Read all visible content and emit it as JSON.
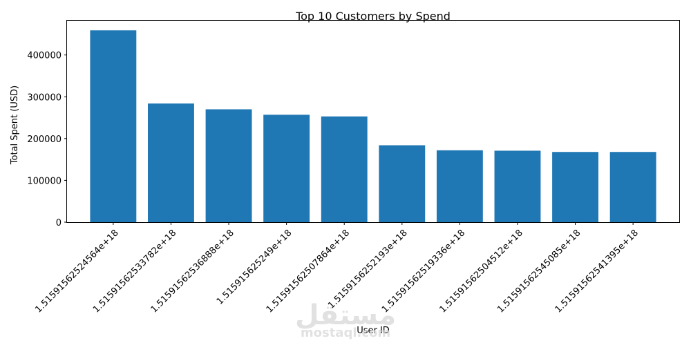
{
  "chart_data": {
    "type": "bar",
    "title": "Top 10 Customers by Spend",
    "xlabel": "User ID",
    "ylabel": "Total Spent (USD)",
    "categories": [
      "1.5159156252456​4e+18",
      "1.51591562533782e+18",
      "1.51591562536888e+18",
      "1.5159156252​49e+18",
      "1.51591562507864e+18",
      "1.51591562521​93e+18",
      "1.51591562519336e+18",
      "1.51591562504512e+18",
      "1.51591562545085e+18",
      "1.51591562541395e+18"
    ],
    "values": [
      459000,
      284000,
      270000,
      257000,
      253000,
      184000,
      172000,
      171000,
      168000,
      168000
    ],
    "yticks": [
      0,
      100000,
      200000,
      300000,
      400000
    ],
    "ylim": [
      0,
      482000
    ],
    "color": "#1f77b4",
    "grid": false
  },
  "watermark": {
    "arabic": "مستقل",
    "latin": "mostaql.com"
  }
}
